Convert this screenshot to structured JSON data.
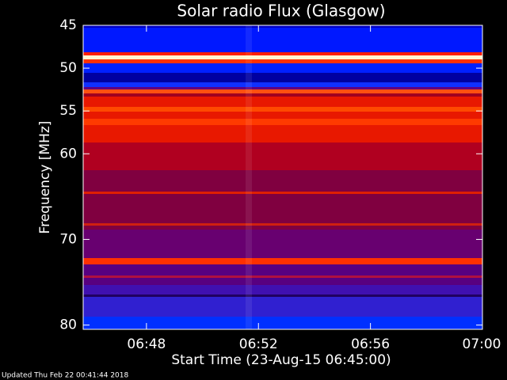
{
  "chart_data": {
    "type": "spectrogram",
    "title": "Solar radio Flux (Glasgow)",
    "x_label": "Start Time (23-Aug-15 06:45:00)",
    "y_label": "Frequency [MHz]",
    "footer": "Updated Thu Feb 22 00:41:44 2018",
    "xlim": [
      45.74,
      60
    ],
    "xticks": [
      {
        "value": 48,
        "label": "06:48"
      },
      {
        "value": 52,
        "label": "06:52"
      },
      {
        "value": 56,
        "label": "06:56"
      },
      {
        "value": 60,
        "label": "07:00"
      }
    ],
    "ylim": [
      45,
      80.5
    ],
    "y_reversed": true,
    "yticks": [
      45,
      50,
      55,
      60,
      70,
      80
    ]
  }
}
